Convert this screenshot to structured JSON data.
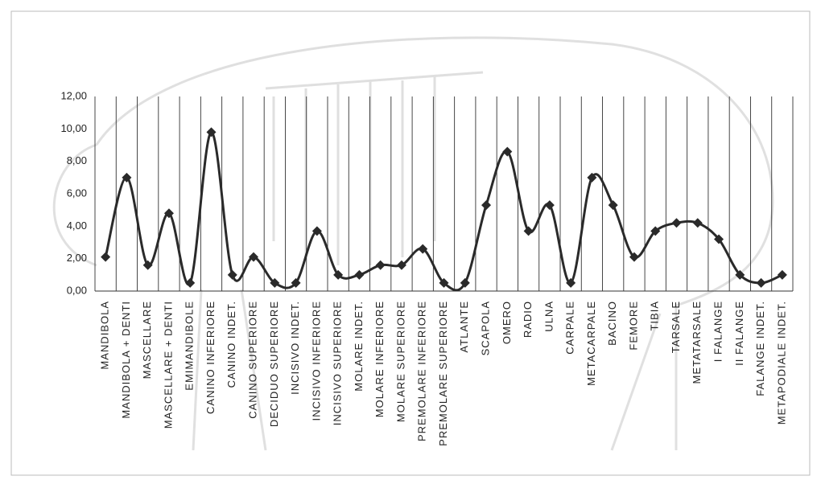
{
  "chart_data": {
    "type": "line",
    "smooth": true,
    "color": "#2a2a2a",
    "marker": "diamond",
    "categories": [
      "MANDIBOLA",
      "MANDIBOLA + DENTI",
      "MASCELLARE",
      "MASCELLARE + DENTI",
      "EMIMANDIBOLE",
      "CANINO INFERIORE",
      "CANINO INDET.",
      "CANINO SUPERIORE",
      "DECIDUO SUPERIORE",
      "INCISIVO INDET.",
      "INCISIVO INFERIORE",
      "INCISIVO SUPERIORE",
      "MOLARE INDET.",
      "MOLARE INFERIORE",
      "MOLARE SUPERIORE",
      "PREMOLARE INFERIORE",
      "PREMOLARE SUPERIORE",
      "ATLANTE",
      "SCAPOLA",
      "OMERO",
      "RADIO",
      "ULNA",
      "CARPALE",
      "METACARPALE",
      "BACINO",
      "FEMORE",
      "TIBIA",
      "TARSALE",
      "METATARSALE",
      "I FALANGE",
      "II FALANGE",
      "FALANGE INDET.",
      "METAPODIALE INDET."
    ],
    "values": [
      2.1,
      7.0,
      1.6,
      4.8,
      0.5,
      9.8,
      1.0,
      2.1,
      0.5,
      0.5,
      3.7,
      1.0,
      1.0,
      1.6,
      1.6,
      2.6,
      0.5,
      0.5,
      5.3,
      8.6,
      3.7,
      5.3,
      0.5,
      7.0,
      5.3,
      2.1,
      3.7,
      4.2,
      4.2,
      3.2,
      1.0,
      0.5,
      1.0
    ],
    "ylim": [
      0,
      12
    ],
    "yticks": [
      {
        "value": 0,
        "label": "0,00"
      },
      {
        "value": 2,
        "label": "2,00"
      },
      {
        "value": 4,
        "label": "4,00"
      },
      {
        "value": 6,
        "label": "6,00"
      },
      {
        "value": 8,
        "label": "8,00"
      },
      {
        "value": 10,
        "label": "10,00"
      },
      {
        "value": 12,
        "label": "12,00"
      }
    ],
    "grid": false,
    "category_dividers": true
  }
}
